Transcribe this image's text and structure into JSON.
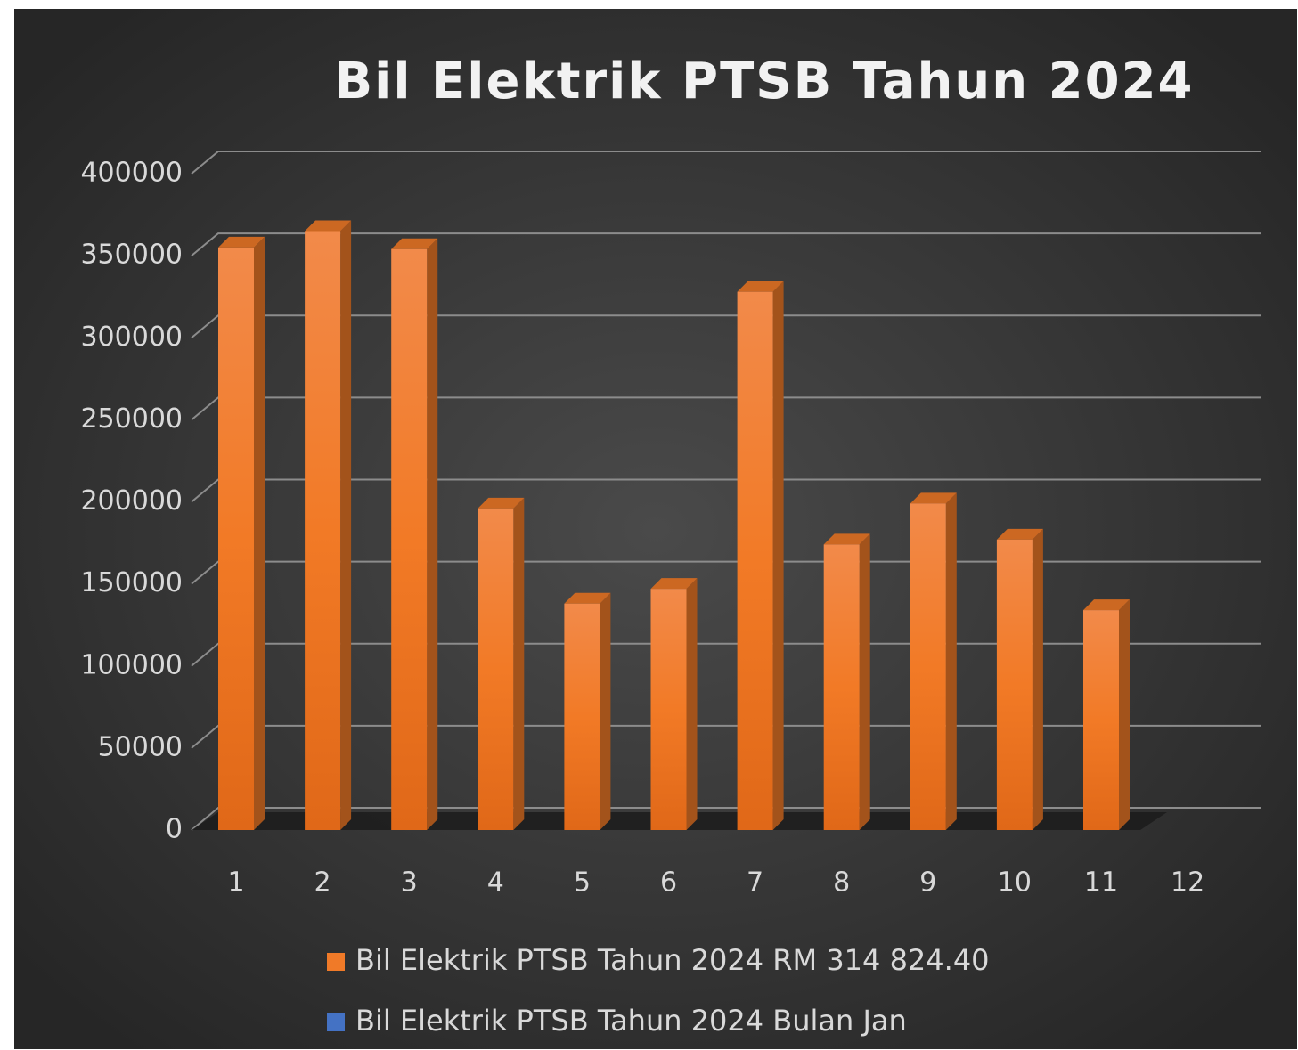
{
  "chart_data": {
    "type": "bar3d",
    "title": "Bil Elektrik PTSB Tahun 2024",
    "categories": [
      "1",
      "2",
      "3",
      "4",
      "5",
      "6",
      "7",
      "8",
      "9",
      "10",
      "11",
      "12"
    ],
    "series": [
      {
        "name": "Bil Elektrik PTSB Tahun 2024 RM 314 824.40",
        "color": "#f07a28",
        "values": [
          355000,
          365000,
          354000,
          196000,
          138000,
          147000,
          328000,
          174000,
          199000,
          177000,
          134000,
          null
        ]
      },
      {
        "name": "Bil Elektrik PTSB Tahun 2024 Bulan Jan",
        "color": "#4472c4",
        "values": [
          null,
          null,
          null,
          null,
          null,
          null,
          null,
          null,
          null,
          null,
          null,
          null
        ]
      }
    ],
    "ylim": [
      0,
      400000
    ],
    "yticks": [
      0,
      50000,
      100000,
      150000,
      200000,
      250000,
      300000,
      350000,
      400000
    ],
    "grid": true,
    "legend": "bottom"
  }
}
